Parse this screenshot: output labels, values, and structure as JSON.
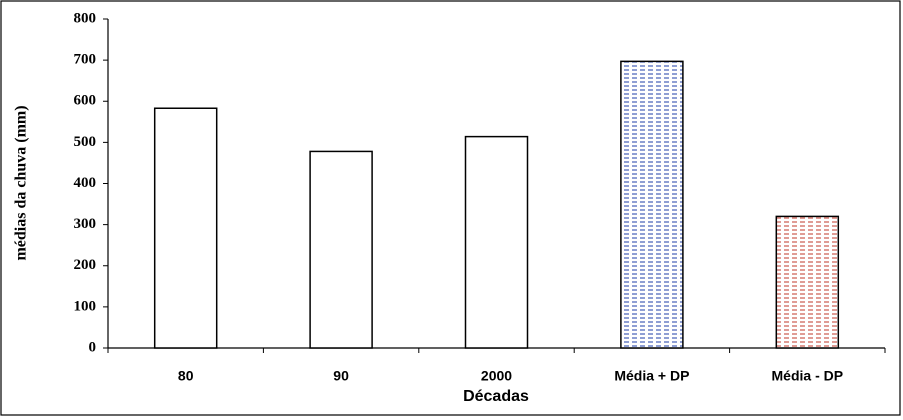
{
  "chart_data": {
    "type": "bar",
    "x_label": "Décadas",
    "y_label": "médias da chuva (mm)",
    "categories": [
      "80",
      "90",
      "2000",
      "Média + DP",
      "Média - DP"
    ],
    "values": [
      583,
      478,
      514,
      697,
      320
    ],
    "colors": [
      "#ffffff",
      "#ffffff",
      "#ffffff",
      "#1f3fa8",
      "#c0392b"
    ],
    "ylim": [
      0,
      800
    ],
    "yticks": [
      0,
      100,
      200,
      300,
      400,
      500,
      600,
      700,
      800
    ],
    "grid": false
  }
}
